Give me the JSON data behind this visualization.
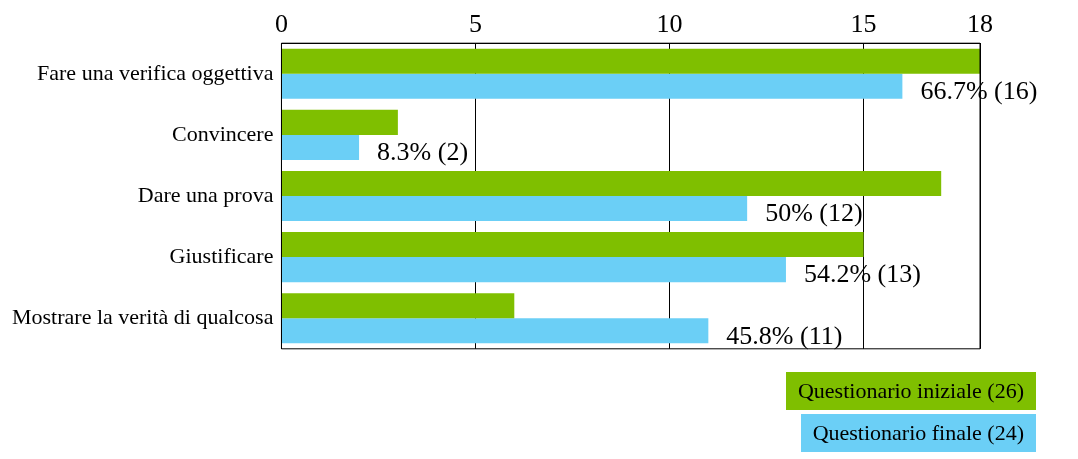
{
  "chart_data": {
    "type": "bar",
    "orientation": "horizontal",
    "categories": [
      "Fare una verifica oggettiva",
      "Convincere",
      "Dare una prova",
      "Giustificare",
      "Mostrare la verità di qualcosa"
    ],
    "series": [
      {
        "name": "Questionario iniziale (26)",
        "color": "#7fbf00",
        "values": [
          18,
          3,
          17,
          15,
          6
        ]
      },
      {
        "name": "Questionario finale (24)",
        "color": "#6bcff6",
        "values": [
          16,
          2,
          12,
          13,
          11
        ],
        "value_labels": [
          "66.7% (16)",
          "8.3% (2)",
          "50% (12)",
          "54.2% (13)",
          "45.8% (11)"
        ]
      }
    ],
    "xlim": [
      0,
      18
    ],
    "xticks": [
      0,
      5,
      10,
      15,
      18
    ],
    "grid": "x",
    "legend": "bottom right"
  }
}
